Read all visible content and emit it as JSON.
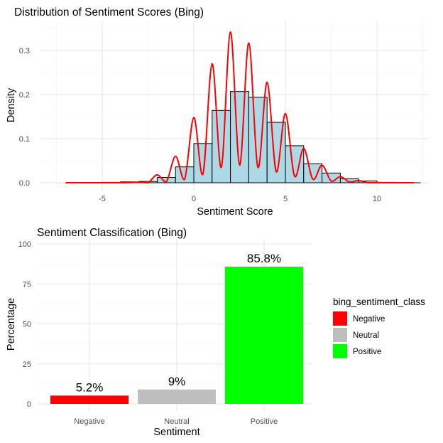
{
  "chart_data": [
    {
      "type": "histogram_density",
      "title": "Distribution of Sentiment Scores (Bing)",
      "xlabel": "Sentiment Score",
      "ylabel": "Density",
      "xlim": [
        -7.3,
        12.3
      ],
      "ylim": [
        0,
        0.36
      ],
      "x_ticks": [
        -5,
        0,
        5,
        10
      ],
      "y_ticks": [
        0.0,
        0.1,
        0.2,
        0.3
      ],
      "x_tick_labels": [
        "-5",
        "0",
        "5",
        "10"
      ],
      "y_tick_labels": [
        "0.0",
        "0.1",
        "0.2",
        "0.3"
      ],
      "grid": true,
      "histogram": {
        "bin_width": 1,
        "bin_starts": [
          -6,
          -5,
          -4,
          -3,
          -2,
          -1,
          0,
          1,
          2,
          3,
          4,
          5,
          6,
          7,
          8,
          9,
          10,
          11
        ],
        "densities": [
          0.0005,
          0.001,
          0.002,
          0.003,
          0.012,
          0.036,
          0.089,
          0.164,
          0.207,
          0.194,
          0.137,
          0.084,
          0.043,
          0.022,
          0.009,
          0.004,
          0.001,
          0.0005
        ],
        "fill": "#add8e6",
        "stroke": "#000000"
      },
      "density_curve": {
        "color": "#ff0000",
        "x": [
          -7.0,
          -4.0,
          -3.0,
          -2.5,
          -2.0,
          -1.5,
          -1.0,
          -0.5,
          0.0,
          0.5,
          1.0,
          1.5,
          2.0,
          2.5,
          3.0,
          3.5,
          4.0,
          4.5,
          5.0,
          5.5,
          6.0,
          6.5,
          7.0,
          7.5,
          8.0,
          8.5,
          9.0,
          9.5,
          10.0,
          12.0
        ],
        "y": [
          0.0,
          0.0,
          0.001,
          0.0,
          0.018,
          0.002,
          0.06,
          0.008,
          0.148,
          0.02,
          0.27,
          0.035,
          0.342,
          0.04,
          0.317,
          0.035,
          0.228,
          0.025,
          0.157,
          0.015,
          0.078,
          0.008,
          0.04,
          0.004,
          0.014,
          0.002,
          0.005,
          0.0,
          0.0,
          0.0
        ]
      }
    },
    {
      "type": "bar",
      "title": "Sentiment Classification (Bing)",
      "xlabel": "Sentiment",
      "ylabel": "Percentage",
      "ylim": [
        0,
        100
      ],
      "y_ticks": [
        0,
        25,
        50,
        75,
        100
      ],
      "y_tick_labels": [
        "0",
        "25",
        "50",
        "75",
        "100"
      ],
      "grid": true,
      "categories": [
        "Negative",
        "Neutral",
        "Positive"
      ],
      "values": [
        5.2,
        9,
        85.8
      ],
      "data_labels": [
        "5.2%",
        "9%",
        "85.8%"
      ],
      "colors": [
        "#ff0000",
        "#bebebe",
        "#00ff00"
      ],
      "legend": {
        "title": "bing_sentiment_class",
        "position": "right",
        "items": [
          {
            "label": "Negative",
            "color": "#ff0000"
          },
          {
            "label": "Neutral",
            "color": "#bebebe"
          },
          {
            "label": "Positive",
            "color": "#00ff00"
          }
        ]
      }
    }
  ]
}
